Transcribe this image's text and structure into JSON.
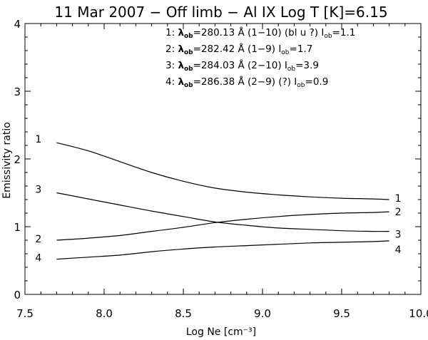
{
  "chart_data": {
    "type": "line",
    "title": "11 Mar 2007 − Off limb −   Al IX   Log T [K]=6.15",
    "xlabel": "Log Ne [cm⁻³]",
    "ylabel": "Emissivity ratio",
    "xlim": [
      7.5,
      10.0
    ],
    "ylim": [
      0,
      4
    ],
    "xticks": [
      "7.5",
      "8.0",
      "8.5",
      "9.0",
      "9.5",
      "10.0"
    ],
    "yticks": [
      "0",
      "1",
      "2",
      "3",
      "4"
    ],
    "grid": false,
    "legend_placement": "top-right",
    "legend": [
      {
        "num": "1:",
        "lam": "=280.13 Å (1−10) (bl u ?)",
        "iob": "=1.1"
      },
      {
        "num": "2:",
        "lam": "=282.42 Å (1−9)",
        "iob": "=1.7"
      },
      {
        "num": "3:",
        "lam": "=284.03 Å (2−10)",
        "iob": "=3.9"
      },
      {
        "num": "4:",
        "lam": "=286.38 Å (2−9) (?)",
        "iob": "=0.9"
      }
    ],
    "lambda_symbol": "λ",
    "sub_ob": "ob",
    "intensity_symbol": "I",
    "x": [
      7.7,
      7.9,
      8.1,
      8.3,
      8.5,
      8.7,
      8.9,
      9.1,
      9.3,
      9.5,
      9.7,
      9.8
    ],
    "series": [
      {
        "label": "1",
        "values": [
          2.24,
          2.12,
          1.96,
          1.8,
          1.67,
          1.57,
          1.51,
          1.47,
          1.44,
          1.42,
          1.41,
          1.4
        ]
      },
      {
        "label": "2",
        "values": [
          0.8,
          0.83,
          0.87,
          0.93,
          0.99,
          1.06,
          1.11,
          1.15,
          1.18,
          1.2,
          1.21,
          1.22
        ]
      },
      {
        "label": "3",
        "values": [
          1.5,
          1.41,
          1.32,
          1.23,
          1.15,
          1.07,
          1.02,
          0.98,
          0.96,
          0.94,
          0.93,
          0.93
        ]
      },
      {
        "label": "4",
        "values": [
          0.52,
          0.55,
          0.58,
          0.63,
          0.67,
          0.7,
          0.72,
          0.74,
          0.76,
          0.77,
          0.78,
          0.79
        ]
      }
    ],
    "curve_labels_left": [
      "1",
      "2",
      "3",
      "4"
    ],
    "curve_labels_right": [
      "1",
      "2",
      "3",
      "4"
    ]
  }
}
